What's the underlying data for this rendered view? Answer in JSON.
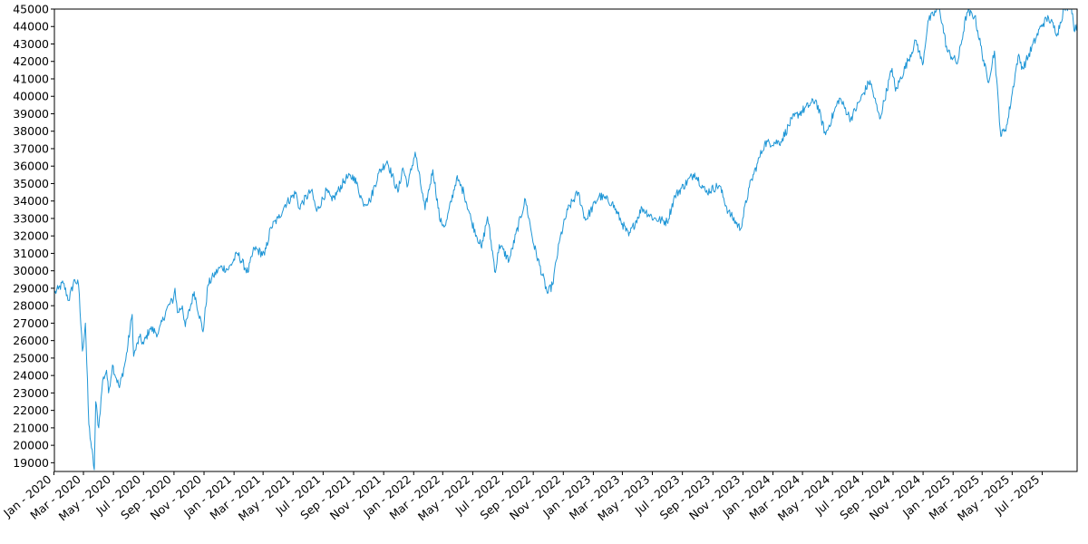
{
  "chart_data": {
    "type": "line",
    "title": "",
    "xlabel": "",
    "ylabel": "",
    "ylim": [
      18500,
      45000
    ],
    "xlim": [
      "2020-01-02",
      "2025-09-10"
    ],
    "grid": false,
    "legend": "none",
    "y_ticks": [
      19000,
      20000,
      21000,
      22000,
      23000,
      24000,
      25000,
      26000,
      27000,
      28000,
      29000,
      30000,
      31000,
      32000,
      33000,
      34000,
      35000,
      36000,
      37000,
      38000,
      39000,
      40000,
      41000,
      42000,
      43000,
      44000,
      45000
    ],
    "x_ticks": [
      {
        "date": "2020-01-01",
        "label": "Jan - 2020"
      },
      {
        "date": "2020-03-01",
        "label": "Mar - 2020"
      },
      {
        "date": "2020-05-01",
        "label": "May - 2020"
      },
      {
        "date": "2020-07-01",
        "label": "Jul - 2020"
      },
      {
        "date": "2020-09-01",
        "label": "Sep - 2020"
      },
      {
        "date": "2020-11-01",
        "label": "Nov - 2020"
      },
      {
        "date": "2021-01-01",
        "label": "Jan - 2021"
      },
      {
        "date": "2021-03-01",
        "label": "Mar - 2021"
      },
      {
        "date": "2021-05-01",
        "label": "May - 2021"
      },
      {
        "date": "2021-07-01",
        "label": "Jul - 2021"
      },
      {
        "date": "2021-09-01",
        "label": "Sep - 2021"
      },
      {
        "date": "2021-11-01",
        "label": "Nov - 2021"
      },
      {
        "date": "2022-01-01",
        "label": "Jan - 2022"
      },
      {
        "date": "2022-03-01",
        "label": "Mar - 2022"
      },
      {
        "date": "2022-05-01",
        "label": "May - 2022"
      },
      {
        "date": "2022-07-01",
        "label": "Jul - 2022"
      },
      {
        "date": "2022-09-01",
        "label": "Sep - 2022"
      },
      {
        "date": "2022-11-01",
        "label": "Nov - 2022"
      },
      {
        "date": "2023-01-01",
        "label": "Jan - 2023"
      },
      {
        "date": "2023-03-01",
        "label": "Mar - 2023"
      },
      {
        "date": "2023-05-01",
        "label": "May - 2023"
      },
      {
        "date": "2023-07-01",
        "label": "Jul - 2023"
      },
      {
        "date": "2023-09-01",
        "label": "Sep - 2023"
      },
      {
        "date": "2023-11-01",
        "label": "Nov - 2023"
      },
      {
        "date": "2024-01-01",
        "label": "Jan - 2024"
      },
      {
        "date": "2024-03-01",
        "label": "Mar - 2024"
      },
      {
        "date": "2024-05-01",
        "label": "May - 2024"
      },
      {
        "date": "2024-07-01",
        "label": "Jul - 2024"
      },
      {
        "date": "2024-09-01",
        "label": "Sep - 2024"
      },
      {
        "date": "2024-11-01",
        "label": "Nov - 2024"
      },
      {
        "date": "2025-01-01",
        "label": "Jan - 2025"
      },
      {
        "date": "2025-03-01",
        "label": "Mar - 2025"
      },
      {
        "date": "2025-05-01",
        "label": "May - 2025"
      },
      {
        "date": "2025-07-01",
        "label": "Jul - 2025"
      }
    ],
    "series": [
      {
        "color": "#1f96d6",
        "points": [
          [
            "2020-01-02",
            28700
          ],
          [
            "2020-01-10",
            28950
          ],
          [
            "2020-01-20",
            29300
          ],
          [
            "2020-01-31",
            28300
          ],
          [
            "2020-02-12",
            29500
          ],
          [
            "2020-02-20",
            29200
          ],
          [
            "2020-02-28",
            25400
          ],
          [
            "2020-03-05",
            27000
          ],
          [
            "2020-03-12",
            21200
          ],
          [
            "2020-03-16",
            20200
          ],
          [
            "2020-03-23",
            18600
          ],
          [
            "2020-03-26",
            22500
          ],
          [
            "2020-04-01",
            21000
          ],
          [
            "2020-04-09",
            23700
          ],
          [
            "2020-04-17",
            24300
          ],
          [
            "2020-04-21",
            23000
          ],
          [
            "2020-04-29",
            24600
          ],
          [
            "2020-05-13",
            23300
          ],
          [
            "2020-05-26",
            24900
          ],
          [
            "2020-06-08",
            27500
          ],
          [
            "2020-06-11",
            25100
          ],
          [
            "2020-06-23",
            26200
          ],
          [
            "2020-07-01",
            25800
          ],
          [
            "2020-07-14",
            26700
          ],
          [
            "2020-07-31",
            26400
          ],
          [
            "2020-08-17",
            27800
          ],
          [
            "2020-08-31",
            28400
          ],
          [
            "2020-09-03",
            29000
          ],
          [
            "2020-09-08",
            27600
          ],
          [
            "2020-09-18",
            28000
          ],
          [
            "2020-09-24",
            26800
          ],
          [
            "2020-10-12",
            28800
          ],
          [
            "2020-10-30",
            26500
          ],
          [
            "2020-11-09",
            29200
          ],
          [
            "2020-11-20",
            29700
          ],
          [
            "2020-12-04",
            30200
          ],
          [
            "2020-12-21",
            30100
          ],
          [
            "2021-01-08",
            31000
          ],
          [
            "2021-01-29",
            29900
          ],
          [
            "2021-02-11",
            31300
          ],
          [
            "2021-03-04",
            30900
          ],
          [
            "2021-03-17",
            32500
          ],
          [
            "2021-04-01",
            33000
          ],
          [
            "2021-04-15",
            33800
          ],
          [
            "2021-05-07",
            34500
          ],
          [
            "2021-05-12",
            33600
          ],
          [
            "2021-06-07",
            34600
          ],
          [
            "2021-06-18",
            33400
          ],
          [
            "2021-07-08",
            34600
          ],
          [
            "2021-07-19",
            34000
          ],
          [
            "2021-08-16",
            35300
          ],
          [
            "2021-09-02",
            35400
          ],
          [
            "2021-09-20",
            33900
          ],
          [
            "2021-10-04",
            34000
          ],
          [
            "2021-10-22",
            35600
          ],
          [
            "2021-11-08",
            36300
          ],
          [
            "2021-11-30",
            34500
          ],
          [
            "2021-12-10",
            35900
          ],
          [
            "2021-12-20",
            34900
          ],
          [
            "2022-01-04",
            36800
          ],
          [
            "2022-01-24",
            33500
          ],
          [
            "2022-02-09",
            35800
          ],
          [
            "2022-02-24",
            32800
          ],
          [
            "2022-03-07",
            32600
          ],
          [
            "2022-03-29",
            35300
          ],
          [
            "2022-04-13",
            34500
          ],
          [
            "2022-04-29",
            32800
          ],
          [
            "2022-05-19",
            31300
          ],
          [
            "2022-05-31",
            33100
          ],
          [
            "2022-06-16",
            29900
          ],
          [
            "2022-06-24",
            31500
          ],
          [
            "2022-07-14",
            30600
          ],
          [
            "2022-08-16",
            34100
          ],
          [
            "2022-09-02",
            31500
          ],
          [
            "2022-09-30",
            28700
          ],
          [
            "2022-10-10",
            29200
          ],
          [
            "2022-10-25",
            31800
          ],
          [
            "2022-11-10",
            33500
          ],
          [
            "2022-12-01",
            34500
          ],
          [
            "2022-12-16",
            32900
          ],
          [
            "2023-01-13",
            34300
          ],
          [
            "2023-02-08",
            33900
          ],
          [
            "2023-03-01",
            32700
          ],
          [
            "2023-03-14",
            32000
          ],
          [
            "2023-04-10",
            33600
          ],
          [
            "2023-05-04",
            33000
          ],
          [
            "2023-05-31",
            32800
          ],
          [
            "2023-06-16",
            34300
          ],
          [
            "2023-07-26",
            35600
          ],
          [
            "2023-08-18",
            34500
          ],
          [
            "2023-09-14",
            34900
          ],
          [
            "2023-10-02",
            33400
          ],
          [
            "2023-10-27",
            32400
          ],
          [
            "2023-11-14",
            34800
          ],
          [
            "2023-12-01",
            36200
          ],
          [
            "2023-12-15",
            37300
          ],
          [
            "2024-01-17",
            37400
          ],
          [
            "2024-02-09",
            38700
          ],
          [
            "2024-03-28",
            39800
          ],
          [
            "2024-04-17",
            37800
          ],
          [
            "2024-05-15",
            39900
          ],
          [
            "2024-06-07",
            38700
          ],
          [
            "2024-07-16",
            40900
          ],
          [
            "2024-08-05",
            38700
          ],
          [
            "2024-08-30",
            41600
          ],
          [
            "2024-09-06",
            40300
          ],
          [
            "2024-10-18",
            43200
          ],
          [
            "2024-10-31",
            41800
          ],
          [
            "2024-11-11",
            44300
          ],
          [
            "2024-12-04",
            45100
          ],
          [
            "2024-12-20",
            42600
          ],
          [
            "2025-01-10",
            41900
          ],
          [
            "2025-01-29",
            44800
          ],
          [
            "2025-02-14",
            44600
          ],
          [
            "2025-03-13",
            40800
          ],
          [
            "2025-03-26",
            42600
          ],
          [
            "2025-04-08",
            37700
          ],
          [
            "2025-04-21",
            38400
          ],
          [
            "2025-05-13",
            42300
          ],
          [
            "2025-05-23",
            41600
          ],
          [
            "2025-06-30",
            44100
          ],
          [
            "2025-07-14",
            44500
          ],
          [
            "2025-08-01",
            43600
          ],
          [
            "2025-08-14",
            45000
          ],
          [
            "2025-08-29",
            45300
          ],
          [
            "2025-09-05",
            43700
          ],
          [
            "2025-09-10",
            44200
          ]
        ]
      }
    ]
  }
}
